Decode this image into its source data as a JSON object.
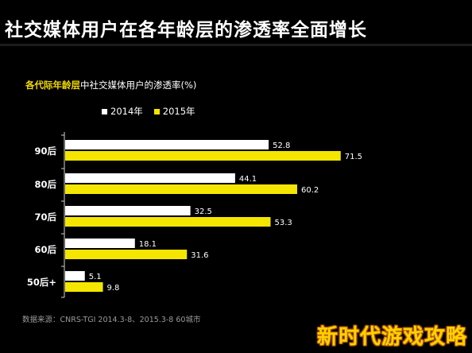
{
  "title": "社交媒体用户在各年龄层的渗透率全面增长",
  "subtitle_highlight": "各代际年龄层",
  "subtitle_rest": "中社交媒体用户的渗透率(%)",
  "source": "数据来源：CNRS-TGI 2014.3-8、2015.3-8  60城市",
  "watermark": "新时代游戏攻略",
  "colors": {
    "series_2014": "#ffffff",
    "series_2015": "#f5e600",
    "axis": "#d0d0d0",
    "text": "#ffffff"
  },
  "chart_data": {
    "type": "bar",
    "orientation": "horizontal",
    "categories": [
      "90后",
      "80后",
      "70后",
      "60后",
      "50后+"
    ],
    "series": [
      {
        "name": "2014年",
        "values": [
          52.8,
          44.1,
          32.5,
          18.1,
          5.1
        ]
      },
      {
        "name": "2015年",
        "values": [
          71.5,
          60.2,
          53.3,
          31.6,
          9.8
        ]
      }
    ],
    "xlim": [
      0,
      80
    ],
    "grid": false,
    "legend_position": "top-left"
  }
}
